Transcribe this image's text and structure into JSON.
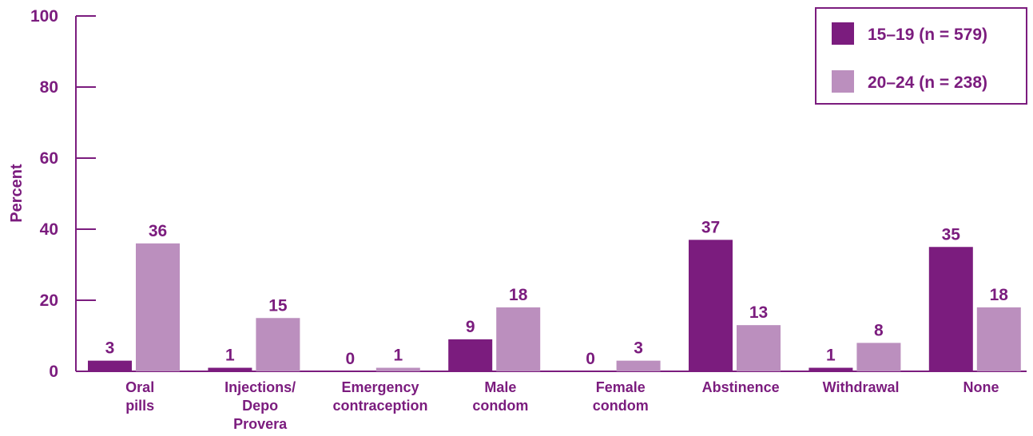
{
  "chart_data": {
    "type": "bar",
    "ylabel": "Percent",
    "xlabel": "",
    "ylim": [
      0,
      100
    ],
    "yticks": [
      0,
      20,
      40,
      60,
      80,
      100
    ],
    "categories": [
      [
        "Oral",
        "pills"
      ],
      [
        "Injections/",
        "Depo",
        "Provera"
      ],
      [
        "Emergency",
        "contraception"
      ],
      [
        "Male",
        "condom"
      ],
      [
        "Female",
        "condom"
      ],
      [
        "Abstinence"
      ],
      [
        "Withdrawal"
      ],
      [
        "None"
      ]
    ],
    "series": [
      {
        "name": "15–19 (n = 579)",
        "color": "#7b1c7e",
        "values": [
          3,
          1,
          0,
          9,
          0,
          37,
          1,
          35
        ]
      },
      {
        "name": "20–24 (n = 238)",
        "color": "#bb8fbe",
        "values": [
          36,
          15,
          1,
          18,
          3,
          13,
          8,
          18
        ]
      }
    ],
    "legend_position": "top-right",
    "grid": false,
    "text_color": "#7b1c7e"
  }
}
